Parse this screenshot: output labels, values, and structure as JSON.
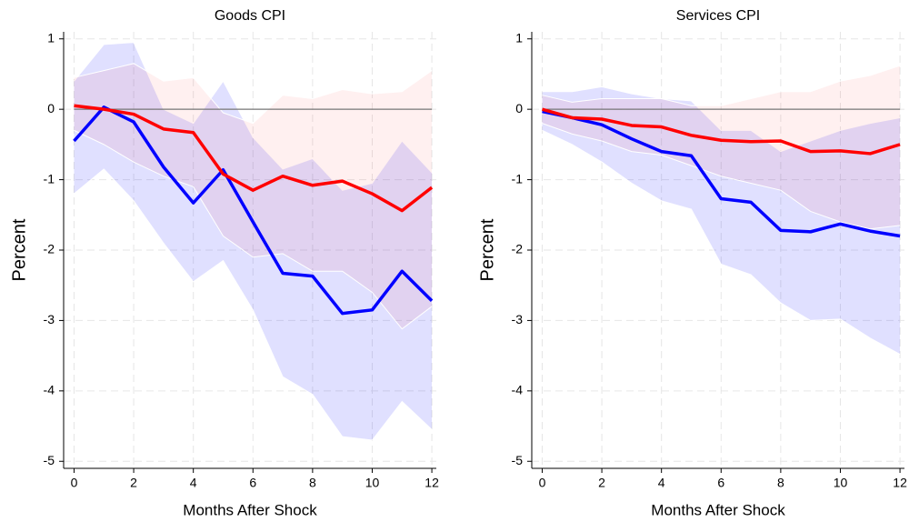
{
  "chart_data": [
    {
      "type": "line",
      "title": "Goods CPI",
      "xlabel": "Months After Shock",
      "ylabel": "Percent",
      "x": [
        0,
        1,
        2,
        3,
        4,
        5,
        6,
        7,
        8,
        9,
        10,
        11,
        12
      ],
      "xlim": [
        -0.35,
        12.15
      ],
      "ylim": [
        -5.1,
        1.1
      ],
      "xticks": [
        0,
        2,
        4,
        6,
        8,
        10,
        12
      ],
      "yticks": [
        -5,
        -4,
        -3,
        -2,
        -1,
        0,
        1
      ],
      "grid": true,
      "reference_line": 0,
      "series": [
        {
          "color": "#0000ff",
          "band_color": "#0000ff",
          "values": [
            -0.45,
            0.03,
            -0.18,
            -0.82,
            -1.33,
            -0.86,
            -1.6,
            -2.33,
            -2.37,
            -2.9,
            -2.85,
            -2.3,
            -2.72
          ],
          "upper": [
            0.4,
            0.92,
            0.95,
            0.0,
            -0.2,
            0.4,
            -0.4,
            -0.85,
            -0.7,
            -1.15,
            -1.05,
            -0.45,
            -0.9
          ],
          "lower": [
            -1.2,
            -0.85,
            -1.3,
            -1.9,
            -2.45,
            -2.15,
            -2.85,
            -3.8,
            -4.05,
            -4.65,
            -4.7,
            -4.15,
            -4.55
          ]
        },
        {
          "color": "#ff0000",
          "band_color": "#ff0000",
          "values": [
            0.05,
            0.0,
            -0.07,
            -0.28,
            -0.33,
            -0.92,
            -1.15,
            -0.95,
            -1.08,
            -1.02,
            -1.2,
            -1.44,
            -1.11
          ],
          "upper": [
            0.45,
            0.55,
            0.65,
            0.4,
            0.45,
            -0.05,
            -0.2,
            0.2,
            0.15,
            0.28,
            0.22,
            0.25,
            0.55
          ],
          "lower": [
            -0.3,
            -0.5,
            -0.75,
            -0.95,
            -1.1,
            -1.8,
            -2.1,
            -2.05,
            -2.3,
            -2.3,
            -2.6,
            -3.12,
            -2.8
          ]
        }
      ]
    },
    {
      "type": "line",
      "title": "Services CPI",
      "xlabel": "Months After Shock",
      "ylabel": "Percent",
      "x": [
        0,
        1,
        2,
        3,
        4,
        5,
        6,
        7,
        8,
        9,
        10,
        11,
        12
      ],
      "xlim": [
        -0.35,
        12.15
      ],
      "ylim": [
        -5.1,
        1.1
      ],
      "xticks": [
        0,
        2,
        4,
        6,
        8,
        10,
        12
      ],
      "yticks": [
        -5,
        -4,
        -3,
        -2,
        -1,
        0,
        1
      ],
      "grid": true,
      "reference_line": 0,
      "series": [
        {
          "color": "#0000ff",
          "band_color": "#0000ff",
          "values": [
            -0.03,
            -0.12,
            -0.22,
            -0.42,
            -0.6,
            -0.66,
            -1.27,
            -1.32,
            -1.72,
            -1.74,
            -1.63,
            -1.73,
            -1.8
          ],
          "upper": [
            0.25,
            0.25,
            0.32,
            0.22,
            0.15,
            0.12,
            -0.3,
            -0.3,
            -0.6,
            -0.45,
            -0.3,
            -0.2,
            -0.12
          ],
          "lower": [
            -0.3,
            -0.5,
            -0.75,
            -1.05,
            -1.3,
            -1.42,
            -2.2,
            -2.35,
            -2.75,
            -3.0,
            -2.98,
            -3.25,
            -3.48
          ]
        },
        {
          "color": "#ff0000",
          "band_color": "#ff0000",
          "values": [
            0.0,
            -0.12,
            -0.14,
            -0.23,
            -0.25,
            -0.37,
            -0.44,
            -0.46,
            -0.45,
            -0.6,
            -0.59,
            -0.63,
            -0.5
          ],
          "upper": [
            0.2,
            0.1,
            0.15,
            0.15,
            0.15,
            0.05,
            0.05,
            0.15,
            0.25,
            0.25,
            0.4,
            0.48,
            0.62
          ],
          "lower": [
            -0.2,
            -0.35,
            -0.45,
            -0.6,
            -0.65,
            -0.8,
            -0.95,
            -1.05,
            -1.15,
            -1.45,
            -1.6,
            -1.7,
            -1.65
          ]
        }
      ]
    }
  ]
}
